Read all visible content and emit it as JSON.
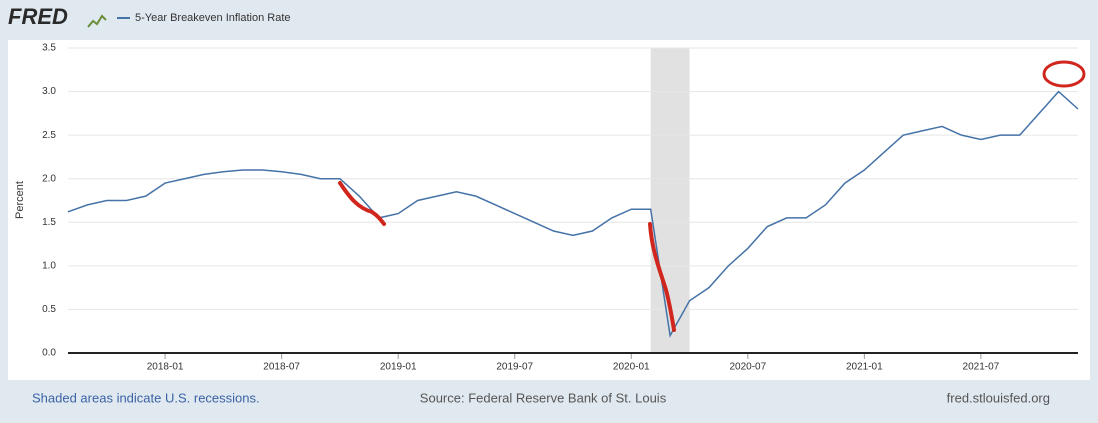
{
  "chart_data": {
    "type": "line",
    "logo": "FRED",
    "y_label": "Percent",
    "x": [
      "2017-08",
      "2017-09",
      "2017-10",
      "2017-11",
      "2017-12",
      "2018-01",
      "2018-02",
      "2018-03",
      "2018-04",
      "2018-05",
      "2018-06",
      "2018-07",
      "2018-08",
      "2018-09",
      "2018-10",
      "2018-11",
      "2018-12",
      "2019-01",
      "2019-02",
      "2019-03",
      "2019-04",
      "2019-05",
      "2019-06",
      "2019-07",
      "2019-08",
      "2019-09",
      "2019-10",
      "2019-11",
      "2019-12",
      "2020-01",
      "2020-02",
      "2020-03",
      "2020-04",
      "2020-05",
      "2020-06",
      "2020-07",
      "2020-08",
      "2020-09",
      "2020-10",
      "2020-11",
      "2020-12",
      "2021-01",
      "2021-02",
      "2021-03",
      "2021-04",
      "2021-05",
      "2021-06",
      "2021-07",
      "2021-08",
      "2021-09",
      "2021-10",
      "2021-11",
      "2021-12"
    ],
    "series": [
      {
        "name": "5-Year Breakeven Inflation Rate",
        "color": "#4572a7",
        "values": [
          1.62,
          1.7,
          1.75,
          1.75,
          1.8,
          1.95,
          2.0,
          2.05,
          2.08,
          2.1,
          2.1,
          2.08,
          2.05,
          2.0,
          2.0,
          1.8,
          1.55,
          1.6,
          1.75,
          1.8,
          1.85,
          1.8,
          1.7,
          1.6,
          1.5,
          1.4,
          1.35,
          1.4,
          1.55,
          1.65,
          1.65,
          0.2,
          0.6,
          0.75,
          1.0,
          1.2,
          1.45,
          1.55,
          1.55,
          1.7,
          1.95,
          2.1,
          2.3,
          2.5,
          2.55,
          2.6,
          2.5,
          2.45,
          2.5,
          2.5,
          2.75,
          3.0,
          2.8
        ]
      }
    ],
    "xlim": [
      "2017-08",
      "2021-12"
    ],
    "xticks": [
      "2018-01",
      "2018-07",
      "2019-01",
      "2019-07",
      "2020-01",
      "2020-07",
      "2021-01",
      "2021-07"
    ],
    "ylim": [
      0,
      3.5
    ],
    "yticks": [
      {
        "value": 0,
        "label": "0.0"
      },
      0.5,
      {
        "value": 1,
        "label": "1.0"
      },
      1.5,
      {
        "value": 2,
        "label": "2.0"
      },
      2.5,
      {
        "value": 3,
        "label": "3.0"
      },
      3.5
    ],
    "grid": true,
    "recessions": [
      {
        "start": "2020-02",
        "end": "2020-04"
      }
    ],
    "footer": {
      "note": "Shaded areas indicate U.S. recessions.",
      "source": "Source: Federal Reserve Bank of St. Louis",
      "site": "fred.stlouisfed.org"
    }
  }
}
